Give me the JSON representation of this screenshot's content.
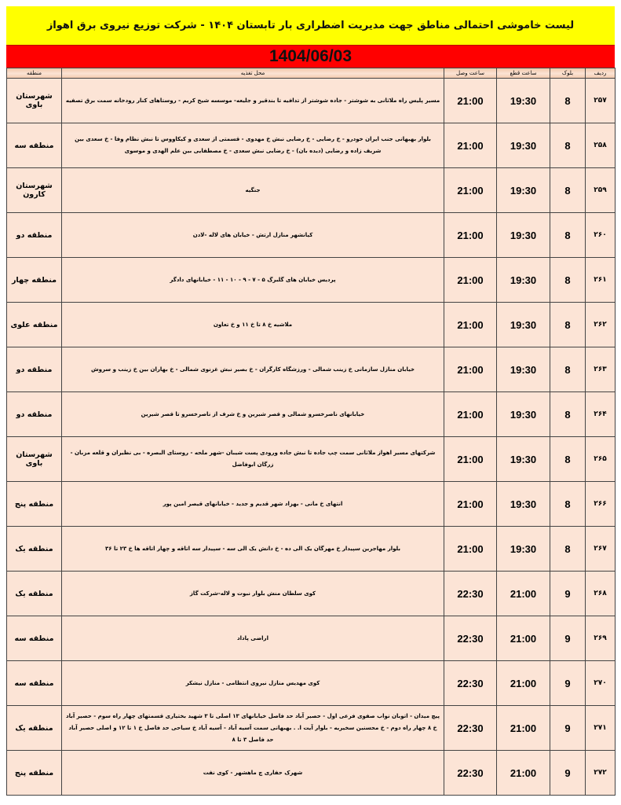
{
  "title": "لیست خاموشی احتمالی مناطق جهت مدیریت اضطراری بار تابستان ۱۴۰۴ - شرکت توزیع نیروی برق اهواز",
  "date": "1404/06/03",
  "colors": {
    "title_bg": "#ffff00",
    "date_bg": "#ff0000",
    "cell_bg": "#fce4d6"
  },
  "columns": {
    "index": "ردیف",
    "block": "بلوک",
    "cut_time": "ساعت قطع",
    "connect_time": "ساعت وصل",
    "location": "محل تغذیه",
    "region": "منطقه"
  },
  "rows": [
    {
      "index": "۲۵۷",
      "block": "8",
      "cut": "19:30",
      "connect": "21:00",
      "location": "مسیر پلیس راه ملاثانی به شوشتر - جاده شوشتر از تدافیه تا بندقیر و جلیعه- موسسه شیخ کریم - روستاهای کنار رودخانه سمت برق تصفیه",
      "region": "شهرستان باوی"
    },
    {
      "index": "۲۵۸",
      "block": "8",
      "cut": "19:30",
      "connect": "21:00",
      "location": "بلوار بهبهانی جنب ایران خودرو - خ رضایی - خ رضایی نبش خ مهدوی - قسمتی از سعدی و کیکاووس تا نبش نظام وفا - خ سعدی بین شریف زاده و رضایی (دیده بان) - خ رضایی نبش سعدی - خ مصطفایی بین علم الهدی و موسوی",
      "region": "منطقه سه"
    },
    {
      "index": "۲۵۹",
      "block": "8",
      "cut": "19:30",
      "connect": "21:00",
      "location": "جنگیه",
      "region": "شهرستان کارون"
    },
    {
      "index": "۲۶۰",
      "block": "8",
      "cut": "19:30",
      "connect": "21:00",
      "location": "کیانشهر منازل ارتش - خیابان های لاله -لادن",
      "region": "منطقه دو"
    },
    {
      "index": "۲۶۱",
      "block": "8",
      "cut": "19:30",
      "connect": "21:00",
      "location": "پردیس خیابان های گلبرگ ۵ - ۷ - ۹ - ۱۰ - ۱۱ - خیابانهای دادگر",
      "region": "منطقه چهار"
    },
    {
      "index": "۲۶۲",
      "block": "8",
      "cut": "19:30",
      "connect": "21:00",
      "location": "ملاشیه خ ۸ تا خ ۱۱ و خ تعاون",
      "region": "منطقه علوی"
    },
    {
      "index": "۲۶۳",
      "block": "8",
      "cut": "19:30",
      "connect": "21:00",
      "location": "خیابان منازل سازمانی خ زینب شمالی - ورزشگاه کارگران - خ بصیر نبش غزنوی شمالی - خ بهاران بین خ زینب و سروش",
      "region": "منطقه دو"
    },
    {
      "index": "۲۶۴",
      "block": "8",
      "cut": "19:30",
      "connect": "21:00",
      "location": "خیابانهای ناصرخسرو شمالی و قصر شیرین و خ شرف از ناصرخسرو تا قصر شیرین",
      "region": "منطقه دو"
    },
    {
      "index": "۲۶۵",
      "block": "8",
      "cut": "19:30",
      "connect": "21:00",
      "location": "شرکتهای مسیر اهواز ملاثانی سمت چپ جاده تا نبش جاده ورودی پست شیبان -شهر ملحه - روستای البصره - بی نظیران و قلعه مزبان - زرگان ابوفاضل",
      "region": "شهرستان باوی"
    },
    {
      "index": "۲۶۶",
      "block": "8",
      "cut": "19:30",
      "connect": "21:00",
      "location": "انتهای خ مانی - بهزاد شهر قدیم و جدید - خیابانهای قیصر امین پور",
      "region": "منطقه پنج"
    },
    {
      "index": "۲۶۷",
      "block": "8",
      "cut": "19:30",
      "connect": "21:00",
      "location": "بلوار مهاجرین سپیدار خ مهرگان یک الی ده - خ دانش یک الی سه - سپیدار سه اتاقه و چهار اتاقه ها خ ۲۳ تا ۳۶",
      "region": "منطقه یک"
    },
    {
      "index": "۲۶۸",
      "block": "9",
      "cut": "21:00",
      "connect": "22:30",
      "location": "کوی سلطان منش بلوار نبوت و لاله-شرکت گاز",
      "region": "منطقه یک"
    },
    {
      "index": "۲۶۹",
      "block": "9",
      "cut": "21:00",
      "connect": "22:30",
      "location": "اراضی پاداد",
      "region": "منطقه سه"
    },
    {
      "index": "۲۷۰",
      "block": "9",
      "cut": "21:00",
      "connect": "22:30",
      "location": "کوی مهدیس منازل نیروی انتظامی - منازل نیشکر",
      "region": "منطقه سه"
    },
    {
      "index": "۲۷۱",
      "block": "9",
      "cut": "21:00",
      "connect": "22:30",
      "location": "پیچ میدان - اتوبان نواب صفوی فرعی اول - حصیر آباد حد فاصل خیابانهای ۱۳ اصلی تا ۳ شهید بختیاری قسمتهای چهار راه سوم - حصیر آباد خ ۸ چهار راه دوم - خ محسنین سخیریه - بلوار آیت ا. . بهبهانی سمت آسیه آباد - آسیه آباد خ سیاحی حد فاصل خ ۱ تا ۱۲ و اصلی حصیر آباد حد فاصل ۳ تا ۸",
      "region": "منطقه یک"
    },
    {
      "index": "۲۷۲",
      "block": "9",
      "cut": "21:00",
      "connect": "22:30",
      "location": "شهرک حفاری چ ماهشهر - کوی نفت",
      "region": "منطقه پنج"
    }
  ]
}
